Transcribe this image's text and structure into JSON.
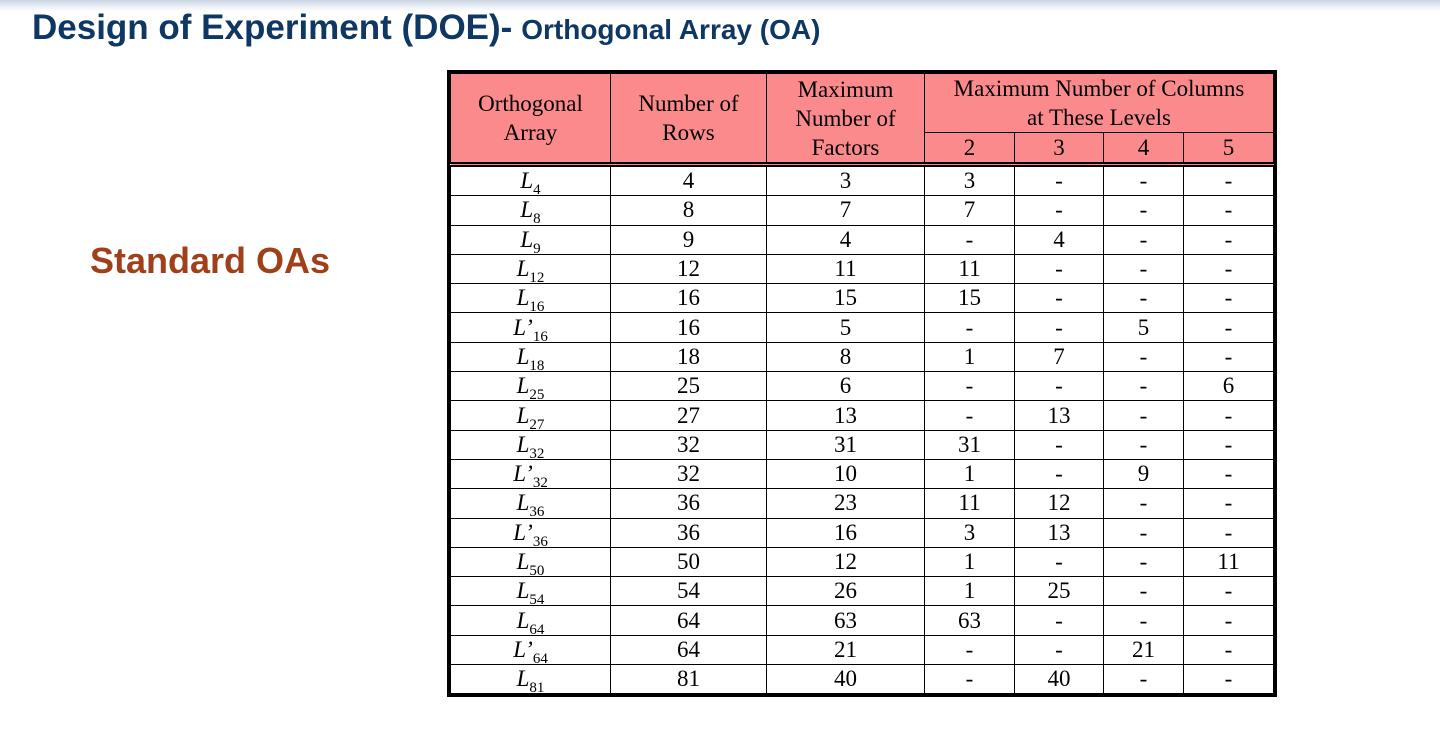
{
  "title": {
    "main": "Design of Experiment (DOE)-",
    "sub": "Orthogonal Array (OA)"
  },
  "side_label": "Standard OAs",
  "colors": {
    "title": "#0f3763",
    "side_label": "#a0401a",
    "header_fill": "#fa8a8c"
  },
  "table": {
    "headers": {
      "array_line1": "Orthogonal",
      "array_line2": "Array",
      "rows_line1": "Number of",
      "rows_line2": "Rows",
      "factors_line1": "Maximum",
      "factors_line2": "Number of",
      "factors_line3": "Factors",
      "levels_line1": "Maximum Number of Columns",
      "levels_line2": "at These Levels",
      "levels": [
        "2",
        "3",
        "4",
        "5"
      ]
    },
    "rows": [
      {
        "array": "L",
        "prime": "",
        "sub": "4",
        "rows": "4",
        "factors": "3",
        "l2": "3",
        "l3": "-",
        "l4": "-",
        "l5": "-"
      },
      {
        "array": "L",
        "prime": "",
        "sub": "8",
        "rows": "8",
        "factors": "7",
        "l2": "7",
        "l3": "-",
        "l4": "-",
        "l5": "-"
      },
      {
        "array": "L",
        "prime": "",
        "sub": "9",
        "rows": "9",
        "factors": "4",
        "l2": "-",
        "l3": "4",
        "l4": "-",
        "l5": "-"
      },
      {
        "array": "L",
        "prime": "",
        "sub": "12",
        "rows": "12",
        "factors": "11",
        "l2": "11",
        "l3": "-",
        "l4": "-",
        "l5": "-"
      },
      {
        "array": "L",
        "prime": "",
        "sub": "16",
        "rows": "16",
        "factors": "15",
        "l2": "15",
        "l3": "-",
        "l4": "-",
        "l5": "-"
      },
      {
        "array": "L",
        "prime": "’",
        "sub": "16",
        "rows": "16",
        "factors": "5",
        "l2": "-",
        "l3": "-",
        "l4": "5",
        "l5": "-"
      },
      {
        "array": "L",
        "prime": "",
        "sub": "18",
        "rows": "18",
        "factors": "8",
        "l2": "1",
        "l3": "7",
        "l4": "-",
        "l5": "-"
      },
      {
        "array": "L",
        "prime": "",
        "sub": "25",
        "rows": "25",
        "factors": "6",
        "l2": "-",
        "l3": "-",
        "l4": "-",
        "l5": "6"
      },
      {
        "array": "L",
        "prime": "",
        "sub": "27",
        "rows": "27",
        "factors": "13",
        "l2": "-",
        "l3": "13",
        "l4": "-",
        "l5": "-"
      },
      {
        "array": "L",
        "prime": "",
        "sub": "32",
        "rows": "32",
        "factors": "31",
        "l2": "31",
        "l3": "-",
        "l4": "-",
        "l5": "-"
      },
      {
        "array": "L",
        "prime": "’",
        "sub": "32",
        "rows": "32",
        "factors": "10",
        "l2": "1",
        "l3": "-",
        "l4": "9",
        "l5": "-"
      },
      {
        "array": "L",
        "prime": "",
        "sub": "36",
        "rows": "36",
        "factors": "23",
        "l2": "11",
        "l3": "12",
        "l4": "-",
        "l5": "-"
      },
      {
        "array": "L",
        "prime": "’",
        "sub": "36",
        "rows": "36",
        "factors": "16",
        "l2": "3",
        "l3": "13",
        "l4": "-",
        "l5": "-"
      },
      {
        "array": "L",
        "prime": "",
        "sub": "50",
        "rows": "50",
        "factors": "12",
        "l2": "1",
        "l3": "-",
        "l4": "-",
        "l5": "11"
      },
      {
        "array": "L",
        "prime": "",
        "sub": "54",
        "rows": "54",
        "factors": "26",
        "l2": "1",
        "l3": "25",
        "l4": "-",
        "l5": "-"
      },
      {
        "array": "L",
        "prime": "",
        "sub": "64",
        "rows": "64",
        "factors": "63",
        "l2": "63",
        "l3": "-",
        "l4": "-",
        "l5": "-"
      },
      {
        "array": "L",
        "prime": "’",
        "sub": "64",
        "rows": "64",
        "factors": "21",
        "l2": "-",
        "l3": "-",
        "l4": "21",
        "l5": "-"
      },
      {
        "array": "L",
        "prime": "",
        "sub": "81",
        "rows": "81",
        "factors": "40",
        "l2": "-",
        "l3": "40",
        "l4": "-",
        "l5": "-"
      }
    ]
  }
}
